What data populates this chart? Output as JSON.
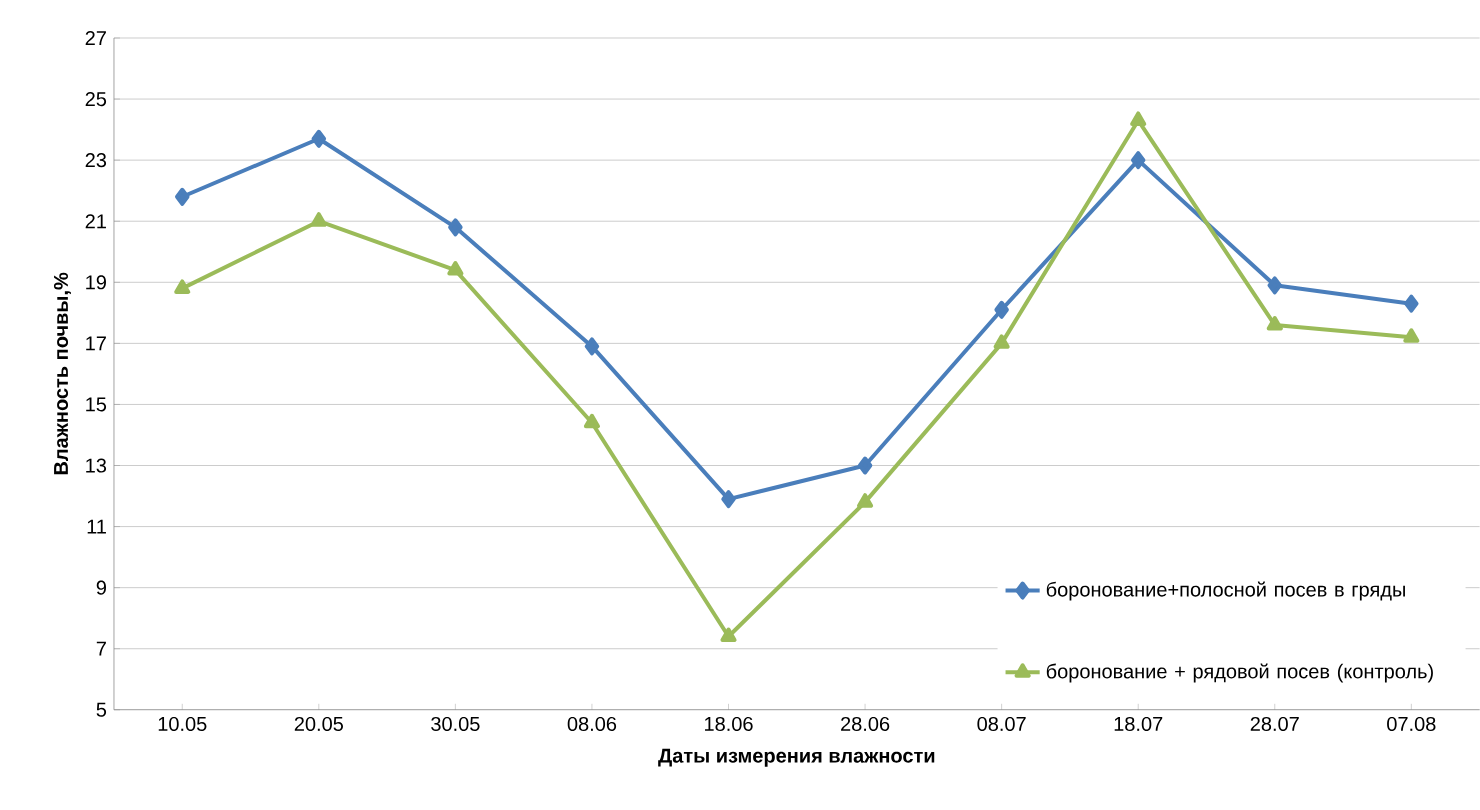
{
  "chart_data": {
    "type": "line",
    "xlabel": "Даты измерения влажности",
    "ylabel": "Влажность почвы,%",
    "categories": [
      "10.05",
      "20.05",
      "30.05",
      "08.06",
      "18.06",
      "28.06",
      "08.07",
      "18.07",
      "28.07",
      "07.08"
    ],
    "series": [
      {
        "name": "боронование+полосной посев в гряды",
        "color": "#4a7ebb",
        "marker": "diamond",
        "values": [
          21.8,
          23.7,
          20.8,
          16.9,
          11.9,
          13.0,
          18.1,
          23.0,
          18.9,
          18.3
        ]
      },
      {
        "name": "боронование + рядовой посев (контроль)",
        "color": "#9bbb59",
        "marker": "triangle",
        "values": [
          18.8,
          21.0,
          19.4,
          14.4,
          7.4,
          11.8,
          17.0,
          24.3,
          17.6,
          17.2
        ]
      }
    ],
    "ylim": [
      5,
      27
    ],
    "yticks": [
      5,
      7,
      9,
      11,
      13,
      15,
      17,
      19,
      21,
      23,
      25,
      27
    ],
    "grid": "y",
    "legend": "right",
    "line_style": "solid"
  }
}
